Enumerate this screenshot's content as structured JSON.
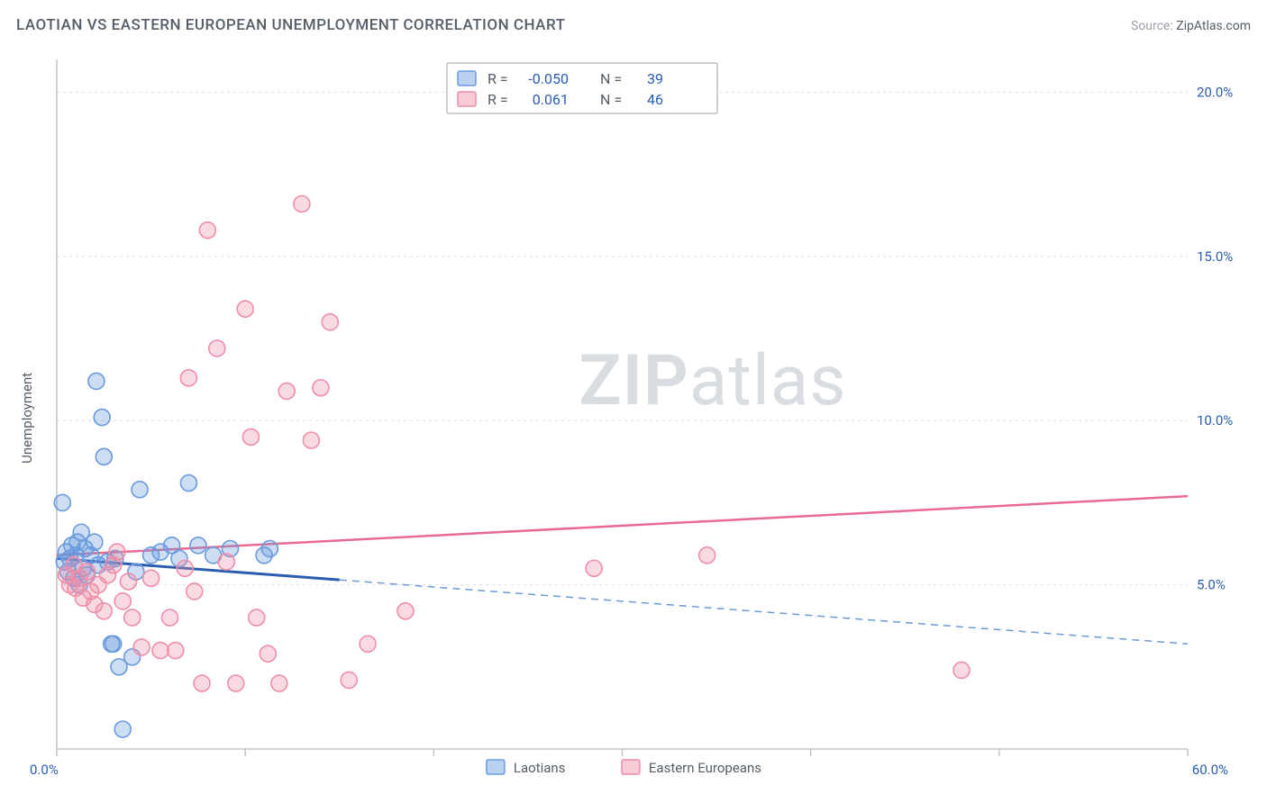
{
  "header": {
    "title": "LAOTIAN VS EASTERN EUROPEAN UNEMPLOYMENT CORRELATION CHART",
    "source_label": "Source: ",
    "source_name": "ZipAtlas.com"
  },
  "watermark": {
    "bold": "ZIP",
    "light": "atlas"
  },
  "chart": {
    "type": "scatter",
    "y_axis_label": "Unemployment",
    "xlim": [
      0,
      60
    ],
    "ylim": [
      0,
      21
    ],
    "x_ticks": [
      0,
      10,
      20,
      30,
      40,
      50,
      60
    ],
    "x_tick_labels": [
      "0.0%",
      "",
      "",
      "",
      "",
      "",
      "60.0%"
    ],
    "y_ticks": [
      5,
      10,
      15,
      20
    ],
    "y_tick_labels": [
      "5.0%",
      "10.0%",
      "15.0%",
      "20.0%"
    ],
    "marker_radius": 9,
    "colors": {
      "blue_stroke": "#6b9bdd",
      "blue_fill": "rgba(100,150,220,0.32)",
      "pink_stroke": "#ee8ea9",
      "pink_fill": "rgba(240,140,165,0.32)",
      "blue_line": "#2a5db0",
      "pink_line": "#e86a8f",
      "grid": "#d8dce0",
      "axis": "#bfc4c9",
      "tick_text": "#2a5db0",
      "label_text": "#555e68"
    },
    "series": [
      {
        "name": "Laotians",
        "key": "blue",
        "R": "-0.050",
        "N": "39",
        "trend": {
          "y_at_x0": 5.8,
          "y_at_x60": 3.2,
          "solid_until_x": 15
        },
        "points": [
          [
            0.3,
            7.5
          ],
          [
            0.4,
            5.7
          ],
          [
            0.5,
            6.0
          ],
          [
            0.6,
            5.4
          ],
          [
            0.7,
            5.8
          ],
          [
            0.8,
            6.2
          ],
          [
            0.9,
            5.2
          ],
          [
            1.0,
            5.9
          ],
          [
            1.1,
            6.3
          ],
          [
            1.2,
            5.0
          ],
          [
            1.3,
            6.6
          ],
          [
            1.4,
            5.5
          ],
          [
            1.5,
            6.1
          ],
          [
            1.6,
            5.3
          ],
          [
            1.8,
            5.9
          ],
          [
            2.0,
            6.3
          ],
          [
            2.1,
            11.2
          ],
          [
            2.2,
            5.6
          ],
          [
            2.4,
            10.1
          ],
          [
            2.5,
            8.9
          ],
          [
            2.7,
            5.7
          ],
          [
            2.9,
            3.2
          ],
          [
            3.0,
            3.2
          ],
          [
            3.1,
            5.8
          ],
          [
            3.3,
            2.5
          ],
          [
            3.5,
            0.6
          ],
          [
            4.0,
            2.8
          ],
          [
            4.2,
            5.4
          ],
          [
            4.4,
            7.9
          ],
          [
            5.0,
            5.9
          ],
          [
            5.5,
            6.0
          ],
          [
            6.1,
            6.2
          ],
          [
            6.5,
            5.8
          ],
          [
            7.0,
            8.1
          ],
          [
            7.5,
            6.2
          ],
          [
            8.3,
            5.9
          ],
          [
            9.2,
            6.1
          ],
          [
            11.0,
            5.9
          ],
          [
            11.3,
            6.1
          ]
        ]
      },
      {
        "name": "Eastern Europeans",
        "key": "pink",
        "R": "0.061",
        "N": "46",
        "trend": {
          "y_at_x0": 5.9,
          "y_at_x60": 7.7,
          "solid_until_x": 60
        },
        "points": [
          [
            0.5,
            5.3
          ],
          [
            0.7,
            5.0
          ],
          [
            0.9,
            5.6
          ],
          [
            1.0,
            4.9
          ],
          [
            1.2,
            5.2
          ],
          [
            1.4,
            4.6
          ],
          [
            1.6,
            5.4
          ],
          [
            1.8,
            4.8
          ],
          [
            2.0,
            4.4
          ],
          [
            2.2,
            5.0
          ],
          [
            2.5,
            4.2
          ],
          [
            2.7,
            5.3
          ],
          [
            3.0,
            5.6
          ],
          [
            3.2,
            6.0
          ],
          [
            3.5,
            4.5
          ],
          [
            3.8,
            5.1
          ],
          [
            4.0,
            4.0
          ],
          [
            4.5,
            3.1
          ],
          [
            5.0,
            5.2
          ],
          [
            5.5,
            3.0
          ],
          [
            6.0,
            4.0
          ],
          [
            6.3,
            3.0
          ],
          [
            6.8,
            5.5
          ],
          [
            7.0,
            11.3
          ],
          [
            7.3,
            4.8
          ],
          [
            7.7,
            2.0
          ],
          [
            8.0,
            15.8
          ],
          [
            8.5,
            12.2
          ],
          [
            9.0,
            5.7
          ],
          [
            9.5,
            2.0
          ],
          [
            10.0,
            13.4
          ],
          [
            10.3,
            9.5
          ],
          [
            10.6,
            4.0
          ],
          [
            11.2,
            2.9
          ],
          [
            11.8,
            2.0
          ],
          [
            12.2,
            10.9
          ],
          [
            13.0,
            16.6
          ],
          [
            13.5,
            9.4
          ],
          [
            14.0,
            11.0
          ],
          [
            14.5,
            13.0
          ],
          [
            15.5,
            2.1
          ],
          [
            16.5,
            3.2
          ],
          [
            18.5,
            4.2
          ],
          [
            28.5,
            5.5
          ],
          [
            34.5,
            5.9
          ],
          [
            48.0,
            2.4
          ]
        ]
      }
    ],
    "legend": {
      "R_label": "R =",
      "N_label": "N =",
      "bottom_items": [
        "Laotians",
        "Eastern Europeans"
      ]
    }
  }
}
